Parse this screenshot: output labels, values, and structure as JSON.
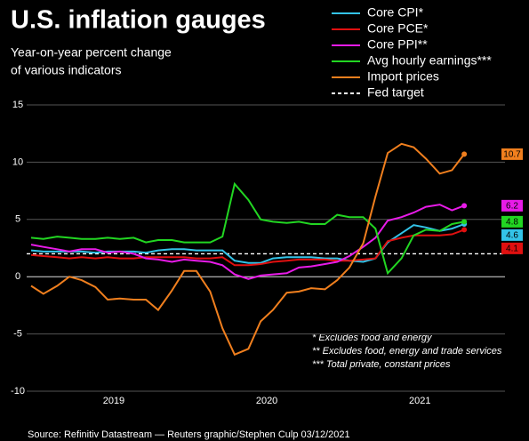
{
  "chart_data": {
    "type": "line",
    "title": "U.S. inflation gauges",
    "subtitle": [
      "Year-on-year percent change",
      "of various indicators"
    ],
    "x": [
      2018.46,
      2018.54,
      2018.63,
      2018.71,
      2018.79,
      2018.88,
      2018.96,
      2019.04,
      2019.13,
      2019.21,
      2019.29,
      2019.38,
      2019.46,
      2019.54,
      2019.63,
      2019.71,
      2019.79,
      2019.88,
      2019.96,
      2020.04,
      2020.13,
      2020.21,
      2020.29,
      2020.38,
      2020.46,
      2020.54,
      2020.63,
      2020.71,
      2020.79,
      2020.88,
      2020.96,
      2021.04,
      2021.13,
      2021.21,
      2021.29
    ],
    "series": [
      {
        "name": "Core CPI*",
        "color": "#33c3e8",
        "values": [
          2.3,
          2.2,
          2.2,
          2.2,
          2.2,
          2.1,
          2.2,
          2.2,
          2.2,
          2.1,
          2.3,
          2.4,
          2.4,
          2.3,
          2.3,
          2.3,
          1.4,
          1.2,
          1.2,
          1.6,
          1.7,
          1.7,
          1.7,
          1.6,
          1.6,
          1.4,
          1.3,
          1.6,
          3.0,
          3.8,
          4.5,
          4.3,
          4.0,
          4.2,
          4.6
        ]
      },
      {
        "name": "Core PCE*",
        "color": "#e01010",
        "values": [
          1.9,
          1.8,
          1.7,
          1.6,
          1.7,
          1.6,
          1.7,
          1.6,
          1.6,
          1.7,
          1.7,
          1.7,
          1.7,
          1.6,
          1.6,
          1.7,
          1.0,
          1.0,
          1.1,
          1.3,
          1.4,
          1.5,
          1.5,
          1.5,
          1.4,
          1.4,
          1.5,
          1.6,
          3.1,
          3.4,
          3.6,
          3.6,
          3.6,
          3.7,
          4.1
        ]
      },
      {
        "name": "Core PPI**",
        "color": "#e81be8",
        "values": [
          2.8,
          2.6,
          2.4,
          2.2,
          2.4,
          2.4,
          2.1,
          2.2,
          2.0,
          1.6,
          1.5,
          1.3,
          1.5,
          1.4,
          1.3,
          1.0,
          0.2,
          -0.2,
          0.1,
          0.2,
          0.3,
          0.8,
          0.9,
          1.1,
          1.3,
          1.8,
          2.6,
          3.4,
          4.9,
          5.2,
          5.6,
          6.1,
          6.3,
          5.8,
          6.2
        ]
      },
      {
        "name": "Avg hourly earnings***",
        "color": "#22d622",
        "values": [
          3.4,
          3.3,
          3.5,
          3.4,
          3.3,
          3.3,
          3.4,
          3.3,
          3.4,
          3.0,
          3.2,
          3.2,
          3.0,
          3.0,
          3.0,
          3.5,
          8.1,
          6.7,
          5.0,
          4.8,
          4.7,
          4.8,
          4.6,
          4.6,
          5.4,
          5.2,
          5.2,
          4.2,
          0.3,
          1.6,
          3.6,
          4.1,
          4.0,
          4.6,
          4.8
        ]
      },
      {
        "name": "Import prices",
        "color": "#f07f1e",
        "values": [
          -0.8,
          -1.5,
          -0.8,
          0.0,
          -0.3,
          -0.9,
          -2.0,
          -1.9,
          -2.0,
          -2.0,
          -2.9,
          -1.2,
          0.5,
          0.5,
          -1.3,
          -4.5,
          -6.8,
          -6.3,
          -3.9,
          -2.9,
          -1.4,
          -1.3,
          -1.0,
          -1.1,
          -0.3,
          0.8,
          2.9,
          7.0,
          10.8,
          11.6,
          11.3,
          10.3,
          9.0,
          9.3,
          10.7
        ]
      }
    ],
    "fed_target": {
      "name": "Fed target",
      "value": 2
    },
    "xlim": [
      2018.46,
      2021.51
    ],
    "xticks": [
      2019,
      2020,
      2021
    ],
    "ylim": [
      -10,
      15
    ],
    "yticks": [
      -10,
      -5,
      0,
      5,
      10,
      15
    ],
    "grid": true,
    "footnotes": [
      "* Excludes food and energy",
      "** Excludes food, energy and trade services",
      "*** Total private, constant prices"
    ],
    "source": "Source: Refinitiv Datastream — Reuters graphic/Stephen Culp 03/12/2021"
  }
}
